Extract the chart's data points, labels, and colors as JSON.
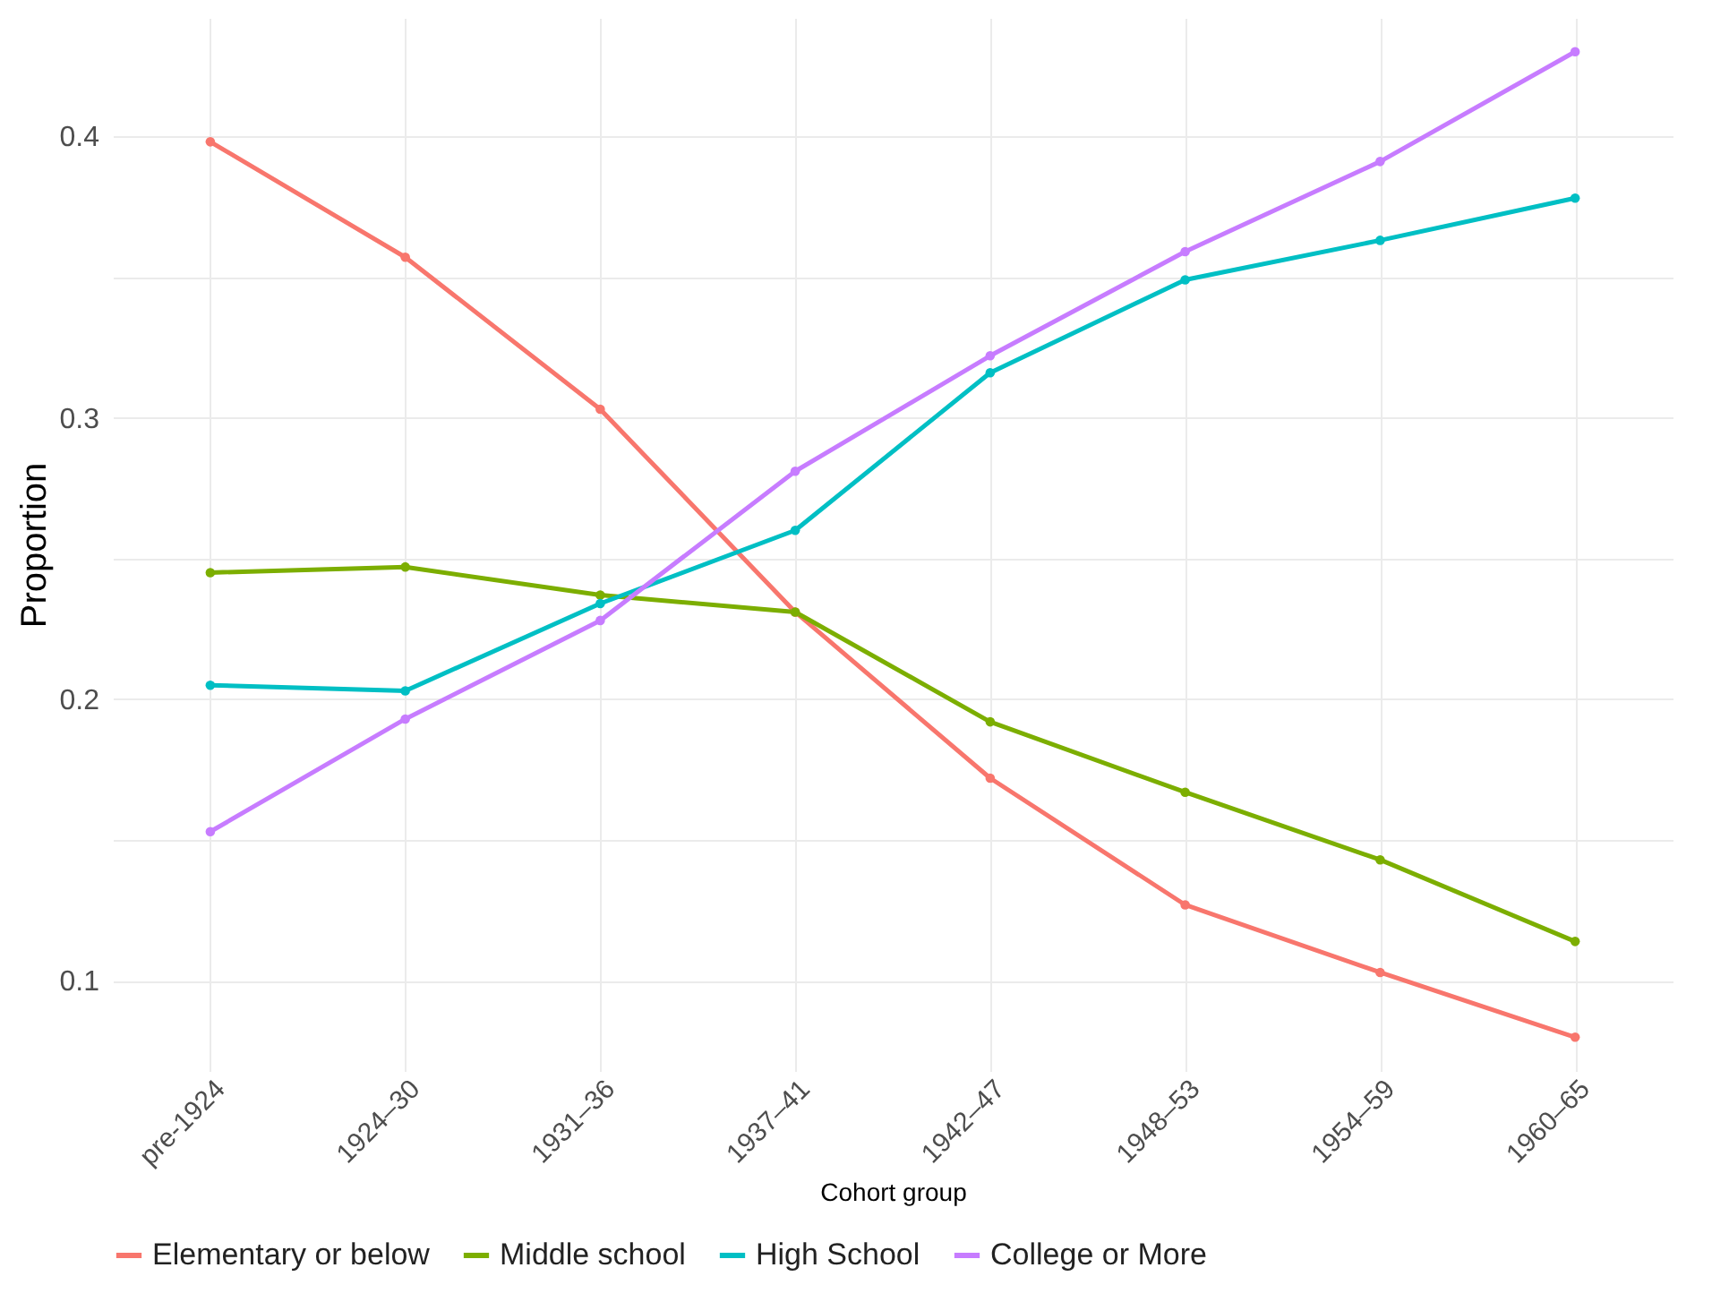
{
  "chart_data": {
    "type": "line",
    "xlabel": "Cohort group",
    "ylabel": "Proportion",
    "categories": [
      "pre-1924",
      "1924–30",
      "1931–36",
      "1937–41",
      "1942–47",
      "1948–53",
      "1954–59",
      "1960–65"
    ],
    "series": [
      {
        "name": "Elementary or below",
        "color": "#f8766d",
        "values": [
          0.398,
          0.357,
          0.303,
          0.231,
          0.172,
          0.127,
          0.103,
          0.08
        ]
      },
      {
        "name": "Middle school",
        "color": "#7cae00",
        "values": [
          0.245,
          0.247,
          0.237,
          0.231,
          0.192,
          0.167,
          0.143,
          0.114
        ]
      },
      {
        "name": "High School",
        "color": "#00bfc4",
        "values": [
          0.205,
          0.203,
          0.234,
          0.26,
          0.316,
          0.349,
          0.363,
          0.378
        ]
      },
      {
        "name": "College or More",
        "color": "#c77cff",
        "values": [
          0.153,
          0.193,
          0.228,
          0.281,
          0.322,
          0.359,
          0.391,
          0.43
        ]
      }
    ],
    "ylim": [
      0.068,
      0.442
    ],
    "yticks": [
      0.1,
      {
        "value": 0.15,
        "label": null
      },
      0.2,
      {
        "value": 0.25,
        "label": null
      },
      0.3,
      {
        "value": 0.35,
        "label": null
      },
      0.4
    ],
    "grid": true,
    "legend": "bottom",
    "marker": "circle"
  }
}
